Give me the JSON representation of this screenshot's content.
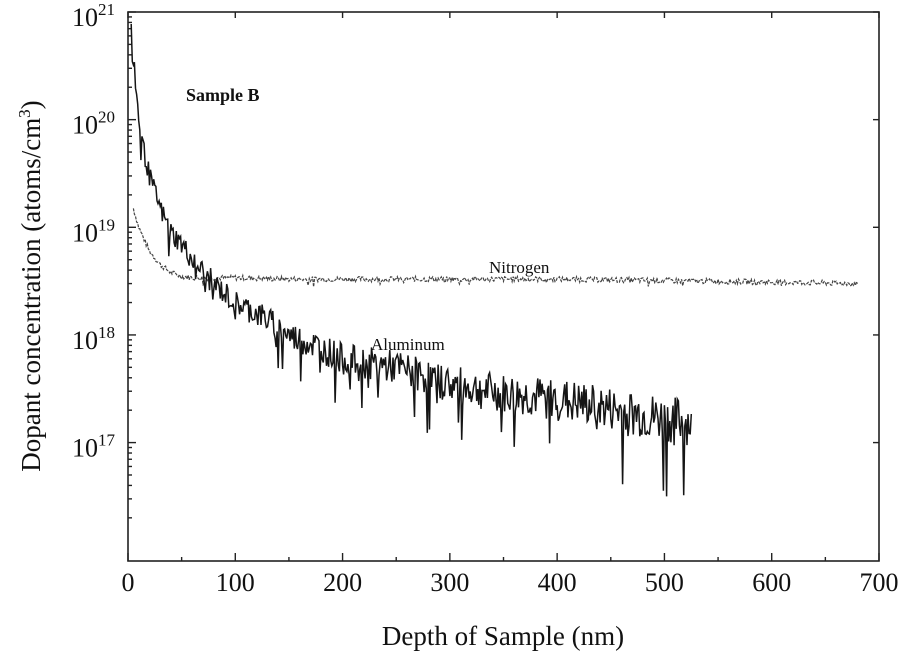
{
  "chart_data": {
    "type": "line",
    "title": "",
    "xlabel": "Depth of Sample (nm)",
    "ylabel_main": "Dopant concentration (atoms/cm",
    "ylabel_sup": "3",
    "ylabel_close": ")",
    "xlim": [
      0,
      700
    ],
    "ylim_log10": [
      15.9,
      21
    ],
    "y_scale": "log",
    "grid": false,
    "x_ticks": [
      "0",
      "100",
      "200",
      "300",
      "400",
      "500",
      "600",
      "700"
    ],
    "x_tick_values": [
      0,
      100,
      200,
      300,
      400,
      500,
      600,
      700
    ],
    "y_ticks": [
      {
        "base": "10",
        "exp": "17",
        "value_log10": 17
      },
      {
        "base": "10",
        "exp": "18",
        "value_log10": 18
      },
      {
        "base": "10",
        "exp": "19",
        "value_log10": 19
      },
      {
        "base": "10",
        "exp": "20",
        "value_log10": 20
      },
      {
        "base": "10",
        "exp": "21",
        "value_log10": 21
      }
    ],
    "annotations": {
      "sample": "Sample B",
      "nitrogen": "Nitrogen",
      "aluminum": "Aluminum"
    },
    "series": [
      {
        "name": "Nitrogen",
        "x": [
          5,
          10,
          20,
          30,
          40,
          50,
          60,
          80,
          100,
          150,
          200,
          300,
          400,
          500,
          600,
          680
        ],
        "y": [
          1.5e+19,
          1e+19,
          6e+18,
          4.5e+18,
          3.8e+18,
          3.5e+18,
          3.4e+18,
          3.4e+18,
          3.4e+18,
          3.3e+18,
          3.3e+18,
          3.3e+18,
          3.3e+18,
          3.2e+18,
          3.1e+18,
          3e+18
        ]
      },
      {
        "name": "Aluminum",
        "x": [
          3,
          6,
          10,
          15,
          20,
          30,
          40,
          50,
          60,
          80,
          100,
          125,
          150,
          175,
          200,
          250,
          300,
          350,
          400,
          450,
          500,
          525
        ],
        "y": [
          8e+20,
          3e+20,
          1e+20,
          5e+19,
          3e+19,
          1.5e+19,
          9e+18,
          7e+18,
          5e+18,
          3e+18,
          2e+18,
          1.5e+18,
          1e+18,
          8e+17,
          6e+17,
          5e+17,
          3.5e+17,
          2.8e+17,
          2.5e+17,
          2e+17,
          1.6e+17,
          1.5e+17
        ]
      }
    ]
  }
}
